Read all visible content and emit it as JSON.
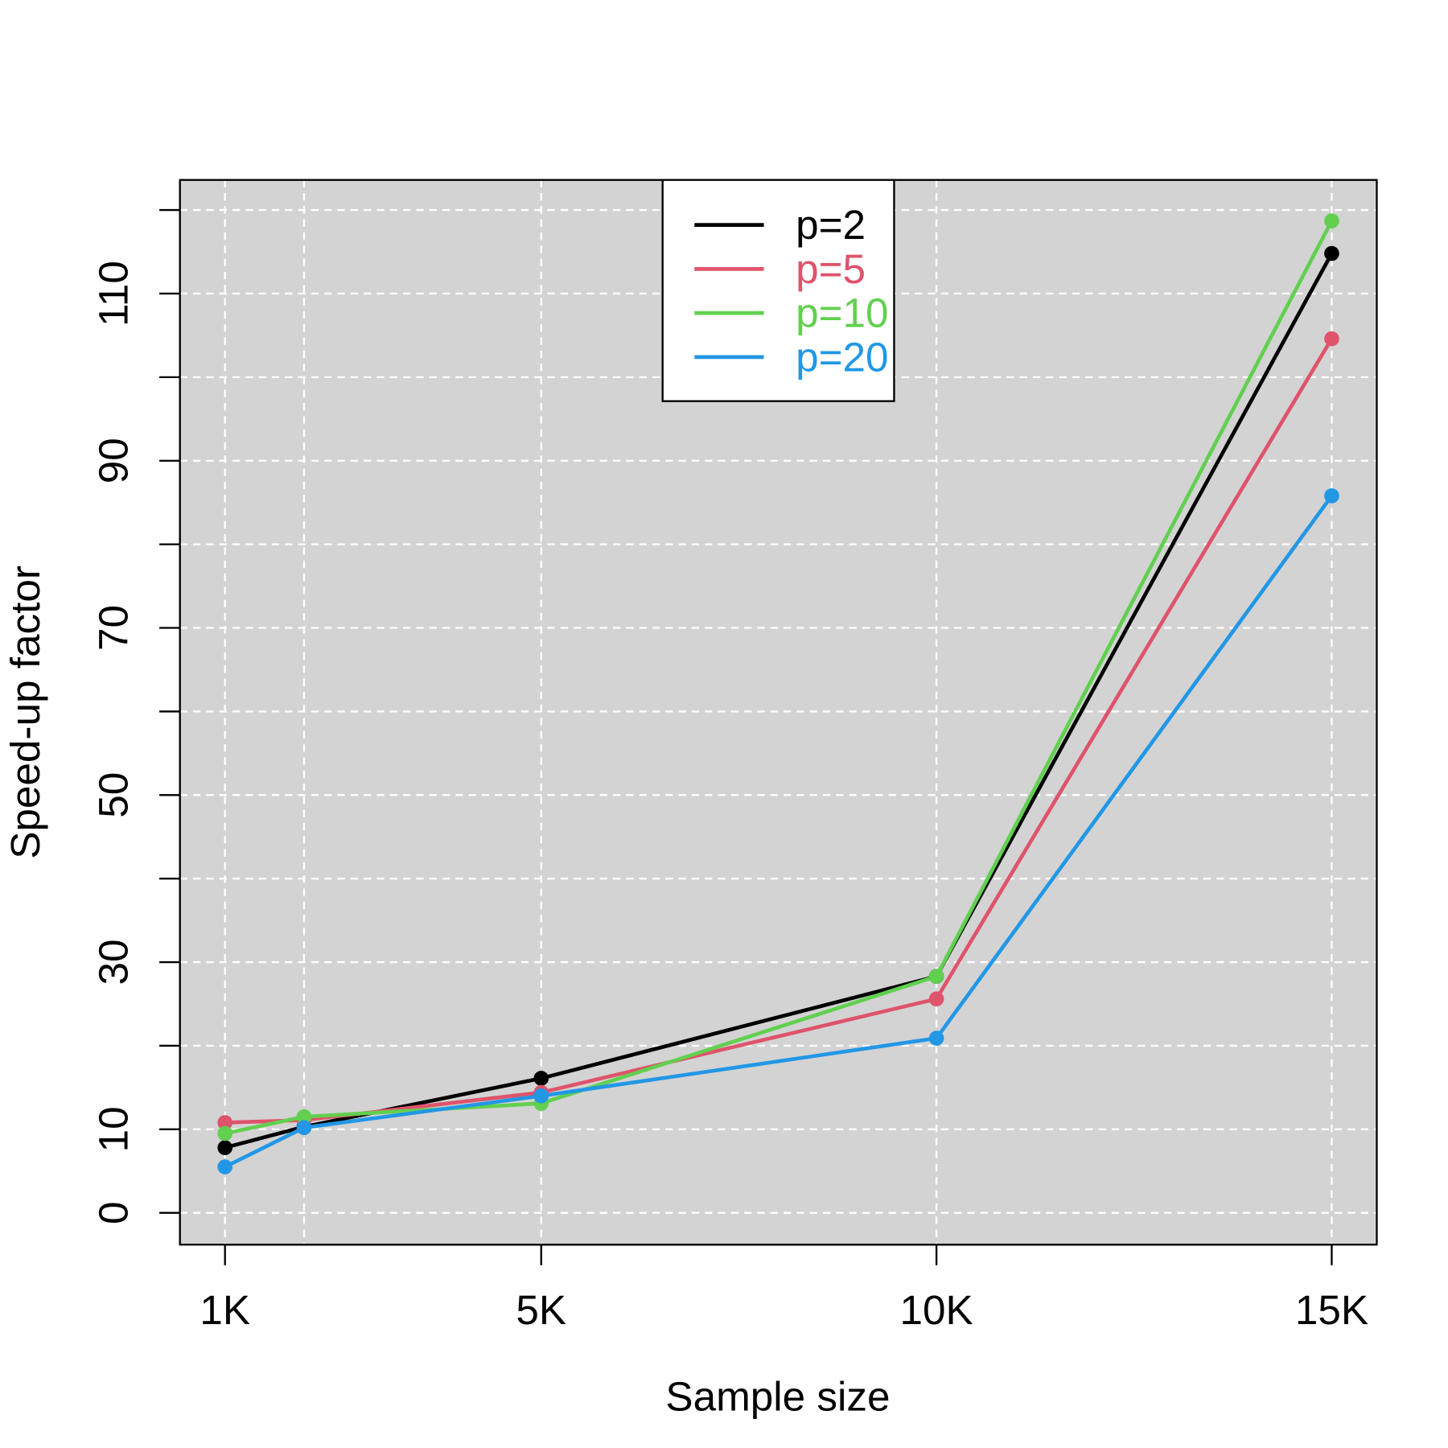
{
  "chart_data": {
    "type": "line",
    "xlabel": "Sample size",
    "ylabel": "Speed-up factor",
    "x": [
      1,
      2,
      5,
      10,
      15
    ],
    "series": [
      {
        "name": "p=2",
        "color": "#000000",
        "values": [
          7.8,
          10.3,
          16.1,
          28.3,
          114.8
        ]
      },
      {
        "name": "p=5",
        "color": "#DF536B",
        "values": [
          10.8,
          11.1,
          14.4,
          25.6,
          104.6
        ]
      },
      {
        "name": "p=10",
        "color": "#61D04F",
        "values": [
          9.5,
          11.5,
          13.1,
          28.3,
          118.7
        ]
      },
      {
        "name": "p=20",
        "color": "#2297E6",
        "values": [
          5.5,
          10.2,
          14.0,
          20.9,
          85.8
        ]
      }
    ],
    "xlim": [
      0.43,
      15.57
    ],
    "ylim": [
      -3.8,
      123.6
    ],
    "xticks": [
      {
        "value": 1,
        "label": "1K"
      },
      {
        "value": 5,
        "label": "5K"
      },
      {
        "value": 10,
        "label": "10K"
      },
      {
        "value": 15,
        "label": "15K"
      }
    ],
    "xgrid": [
      1,
      2,
      5,
      10,
      15
    ],
    "yticks": [
      0,
      10,
      30,
      50,
      70,
      90,
      110
    ],
    "yticks_minor": [
      20,
      40,
      60,
      80,
      100,
      120
    ],
    "grid": true,
    "legend": "top"
  }
}
